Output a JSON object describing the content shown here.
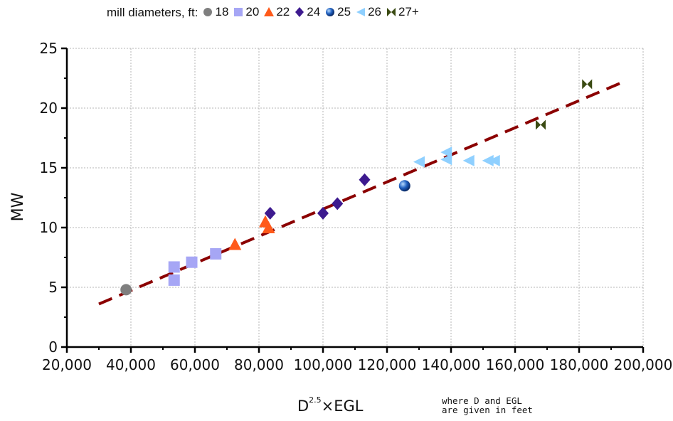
{
  "legend": {
    "label": "mill diameters, ft:",
    "items": [
      {
        "label": "18",
        "marker": "circle",
        "color": "#7f7f7f"
      },
      {
        "label": "20",
        "marker": "square",
        "color": "#a6a6f5"
      },
      {
        "label": "22",
        "marker": "triangle",
        "color": "#ff5a1a"
      },
      {
        "label": "24",
        "marker": "diamond",
        "color": "#3d1a8f"
      },
      {
        "label": "25",
        "marker": "sphere",
        "color": "#1f5fbf"
      },
      {
        "label": "26",
        "marker": "left-triangle",
        "color": "#8fd0ff"
      },
      {
        "label": "27+",
        "marker": "bowtie",
        "color": "#3a4a12"
      }
    ]
  },
  "axes": {
    "x_title_main": "D",
    "x_title_sup": "2.5",
    "x_title_rest": "×EGL",
    "y_title": "MW",
    "note_line1": "where D and EGL",
    "note_line2": "are given in feet"
  },
  "chart_data": {
    "type": "scatter",
    "xlabel": "D2.5×EGL",
    "ylabel": "MW",
    "xlim": [
      20000,
      200000
    ],
    "ylim": [
      0,
      25
    ],
    "xticks": [
      20000,
      40000,
      60000,
      80000,
      100000,
      120000,
      140000,
      160000,
      180000,
      200000
    ],
    "xtick_labels": [
      "20,000",
      "40,000",
      "60,000",
      "80,000",
      "100,000",
      "120,000",
      "140,000",
      "160,000",
      "180,000",
      "200,000"
    ],
    "yticks": [
      0,
      5,
      10,
      15,
      20,
      25
    ],
    "ytick_labels": [
      "0",
      "5",
      "10",
      "15",
      "20",
      "25"
    ],
    "grid": true,
    "legend_position": "top",
    "series": [
      {
        "name": "18",
        "marker": "circle",
        "color": "#7f7f7f",
        "points": [
          [
            38500,
            4.8
          ]
        ]
      },
      {
        "name": "20",
        "marker": "square",
        "color": "#a6a6f5",
        "points": [
          [
            53500,
            6.7
          ],
          [
            53500,
            5.6
          ],
          [
            59000,
            7.1
          ],
          [
            66500,
            7.8
          ]
        ]
      },
      {
        "name": "22",
        "marker": "triangle",
        "color": "#ff5a1a",
        "points": [
          [
            72500,
            8.6
          ],
          [
            82000,
            10.5
          ],
          [
            83000,
            10.0
          ]
        ]
      },
      {
        "name": "24",
        "marker": "diamond",
        "color": "#3d1a8f",
        "points": [
          [
            83500,
            11.2
          ],
          [
            100000,
            11.2
          ],
          [
            104500,
            12.0
          ],
          [
            113000,
            14.0
          ]
        ]
      },
      {
        "name": "25",
        "marker": "sphere",
        "color": "#1f5fbf",
        "points": [
          [
            125500,
            13.5
          ]
        ]
      },
      {
        "name": "26",
        "marker": "left-triangle",
        "color": "#8fd0ff",
        "points": [
          [
            130000,
            15.5
          ],
          [
            138500,
            16.3
          ],
          [
            138500,
            15.7
          ],
          [
            145500,
            15.6
          ],
          [
            151500,
            15.6
          ],
          [
            153500,
            15.6
          ]
        ]
      },
      {
        "name": "27+",
        "marker": "bowtie",
        "color": "#3a4a12",
        "points": [
          [
            168000,
            18.6
          ],
          [
            182500,
            22.0
          ]
        ]
      }
    ],
    "trendline": {
      "style": "dashed",
      "color": "#8b0000",
      "x": [
        30000,
        193000
      ],
      "y": [
        3.6,
        22.1
      ]
    }
  }
}
